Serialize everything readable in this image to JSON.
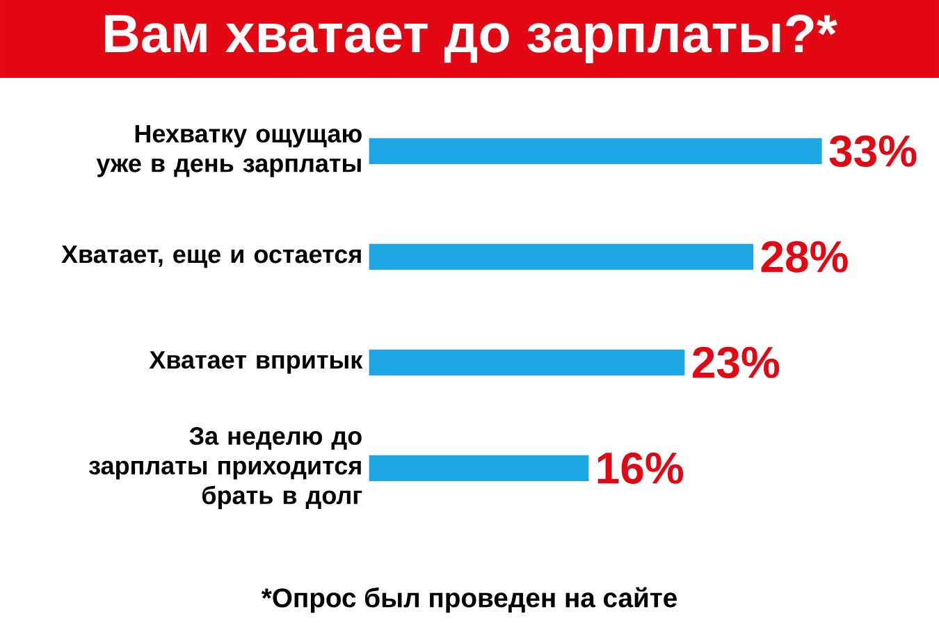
{
  "chart_data": {
    "type": "bar",
    "orientation": "horizontal",
    "title": "Вам хватает до зарплаты?*",
    "categories": [
      "Нехватку ощущаю уже в день зарплаты",
      "Хватает, еще и остается",
      "Хватает впритык",
      "За неделю до зарплаты приходится брать в долг"
    ],
    "values": [
      33,
      28,
      23,
      16
    ],
    "value_labels": [
      "33%",
      "28%",
      "23%",
      "16%"
    ],
    "color": "#1ca6e3",
    "annotations": [
      "*Опрос был проведен на сайте"
    ]
  }
}
